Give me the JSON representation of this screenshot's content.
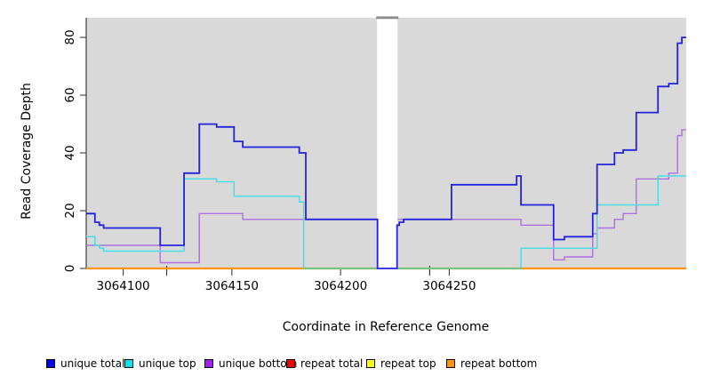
{
  "figure": {
    "background": "#ffffff",
    "plot_background": "#d9d9d9",
    "axis_color": "#4d4d4d",
    "gap_cap_color": "#8a8a8a",
    "mark_color": "#3a3a3a"
  },
  "chart_data": {
    "type": "line",
    "subtype": "step-coverage",
    "title": "",
    "xlabel": "Coordinate in Reference Genome",
    "ylabel": "Read Coverage Depth",
    "xlim": [
      3064083,
      3064359
    ],
    "ylim": [
      0,
      86.8
    ],
    "x_ticks": [
      3064100,
      3064150,
      3064200,
      3064250
    ],
    "y_ticks": [
      0,
      20,
      40,
      60,
      80
    ],
    "grid": false,
    "legend_position": "bottom",
    "gap_band": {
      "start": 3064217,
      "end": 3064226,
      "note": "white no-data band with gray cap, total drops to 0"
    },
    "snp_marks": [
      3064120,
      3064241
    ],
    "zero_overlap_segment": {
      "start": 3064183,
      "end": 3064283,
      "y": 0,
      "color": "#6ec487",
      "note": "unique top at 0 blends with repeat bottom orange"
    },
    "series": [
      {
        "name": "unique total",
        "color": "#2323dc",
        "legend_color": "#0000ee",
        "steps": [
          [
            3064083,
            19
          ],
          [
            3064087,
            16
          ],
          [
            3064089,
            15
          ],
          [
            3064091,
            14
          ],
          [
            3064117,
            8
          ],
          [
            3064128,
            33
          ],
          [
            3064135,
            50
          ],
          [
            3064143,
            49
          ],
          [
            3064151,
            44
          ],
          [
            3064155,
            42
          ],
          [
            3064181,
            40
          ],
          [
            3064184,
            17
          ],
          [
            3064217,
            0
          ],
          [
            3064226,
            15
          ],
          [
            3064227,
            16
          ],
          [
            3064229,
            17
          ],
          [
            3064251,
            29
          ],
          [
            3064281,
            32
          ],
          [
            3064283,
            22
          ],
          [
            3064298,
            10
          ],
          [
            3064303,
            11
          ],
          [
            3064316,
            19
          ],
          [
            3064318,
            36
          ],
          [
            3064326,
            40
          ],
          [
            3064330,
            41
          ],
          [
            3064336,
            54
          ],
          [
            3064346,
            63
          ],
          [
            3064351,
            64
          ],
          [
            3064355,
            78
          ],
          [
            3064357,
            80
          ]
        ]
      },
      {
        "name": "unique top",
        "color": "#49dde6",
        "legend_color": "#00e5ee",
        "steps": [
          [
            3064083,
            11
          ],
          [
            3064087,
            8
          ],
          [
            3064089,
            7
          ],
          [
            3064091,
            6
          ],
          [
            3064128,
            31
          ],
          [
            3064143,
            30
          ],
          [
            3064151,
            25
          ],
          [
            3064181,
            23
          ],
          [
            3064183,
            0
          ],
          [
            3064283,
            7
          ],
          [
            3064318,
            22
          ],
          [
            3064346,
            32
          ]
        ]
      },
      {
        "name": "unique bottom",
        "color": "#ae70e2",
        "legend_color": "#a020f0",
        "steps": [
          [
            3064083,
            8
          ],
          [
            3064117,
            2
          ],
          [
            3064135,
            19
          ],
          [
            3064155,
            17
          ],
          [
            3064283,
            15
          ],
          [
            3064298,
            3
          ],
          [
            3064303,
            4
          ],
          [
            3064316,
            12
          ],
          [
            3064318,
            14
          ],
          [
            3064326,
            17
          ],
          [
            3064330,
            19
          ],
          [
            3064336,
            31
          ],
          [
            3064351,
            33
          ],
          [
            3064355,
            46
          ],
          [
            3064357,
            48
          ]
        ]
      },
      {
        "name": "repeat total",
        "color": "#dd0000",
        "legend_color": "#ee0000",
        "steps": [
          [
            3064083,
            0
          ]
        ]
      },
      {
        "name": "repeat top",
        "color": "#eeee00",
        "legend_color": "#ffff00",
        "steps": [
          [
            3064083,
            0
          ]
        ]
      },
      {
        "name": "repeat bottom",
        "color": "#ff9505",
        "legend_color": "#ff9800",
        "steps": [
          [
            3064083,
            0
          ]
        ]
      }
    ]
  },
  "legend": {
    "items": [
      {
        "label": "unique total"
      },
      {
        "label": "unique top"
      },
      {
        "label": "unique bottom"
      },
      {
        "label": "repeat total"
      },
      {
        "label": "repeat top"
      },
      {
        "label": "repeat bottom"
      }
    ]
  }
}
